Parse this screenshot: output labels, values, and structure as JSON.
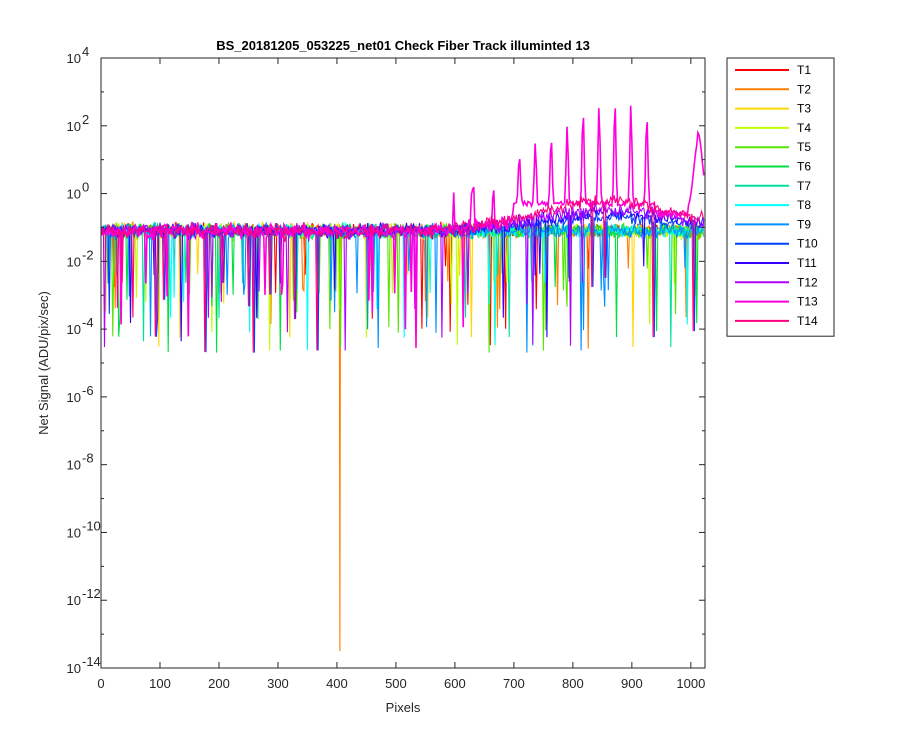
{
  "chart_data": {
    "type": "line",
    "title": "BS_20181205_053225_net01   Check Fiber     Track illuminted 13",
    "xlabel": "Pixels",
    "ylabel": "Net Signal (ADU/pix/sec)",
    "xlim": [
      0,
      1024
    ],
    "ylim_exponents": [
      -14,
      4
    ],
    "yscale": "log",
    "x_ticks": [
      0,
      100,
      200,
      300,
      400,
      500,
      600,
      700,
      800,
      900,
      1000
    ],
    "y_tick_exponents": [
      -14,
      -12,
      -10,
      -8,
      -6,
      -4,
      -2,
      0,
      2,
      4
    ],
    "y_tick_base": "10",
    "legend_position": "outside-right",
    "series": [
      {
        "name": "T1",
        "color": "#ff0000"
      },
      {
        "name": "T2",
        "color": "#ff7f00"
      },
      {
        "name": "T3",
        "color": "#ffd700"
      },
      {
        "name": "T4",
        "color": "#bfff00"
      },
      {
        "name": "T5",
        "color": "#55e600"
      },
      {
        "name": "T6",
        "color": "#00e040"
      },
      {
        "name": "T7",
        "color": "#00e0a0"
      },
      {
        "name": "T8",
        "color": "#00ffff"
      },
      {
        "name": "T9",
        "color": "#0090ff"
      },
      {
        "name": "T10",
        "color": "#0040ff"
      },
      {
        "name": "T11",
        "color": "#3300ff"
      },
      {
        "name": "T12",
        "color": "#b000ff"
      },
      {
        "name": "T13",
        "color": "#ff00dd"
      },
      {
        "name": "T14",
        "color": "#ff0080"
      }
    ],
    "notable_points": [
      {
        "series": "T2",
        "x": 405,
        "y_exponent": -13.5
      },
      {
        "series": "T13",
        "x": 870,
        "y_exponent": 3.2
      }
    ],
    "baseline_exponent": -1.1,
    "grid": false
  }
}
